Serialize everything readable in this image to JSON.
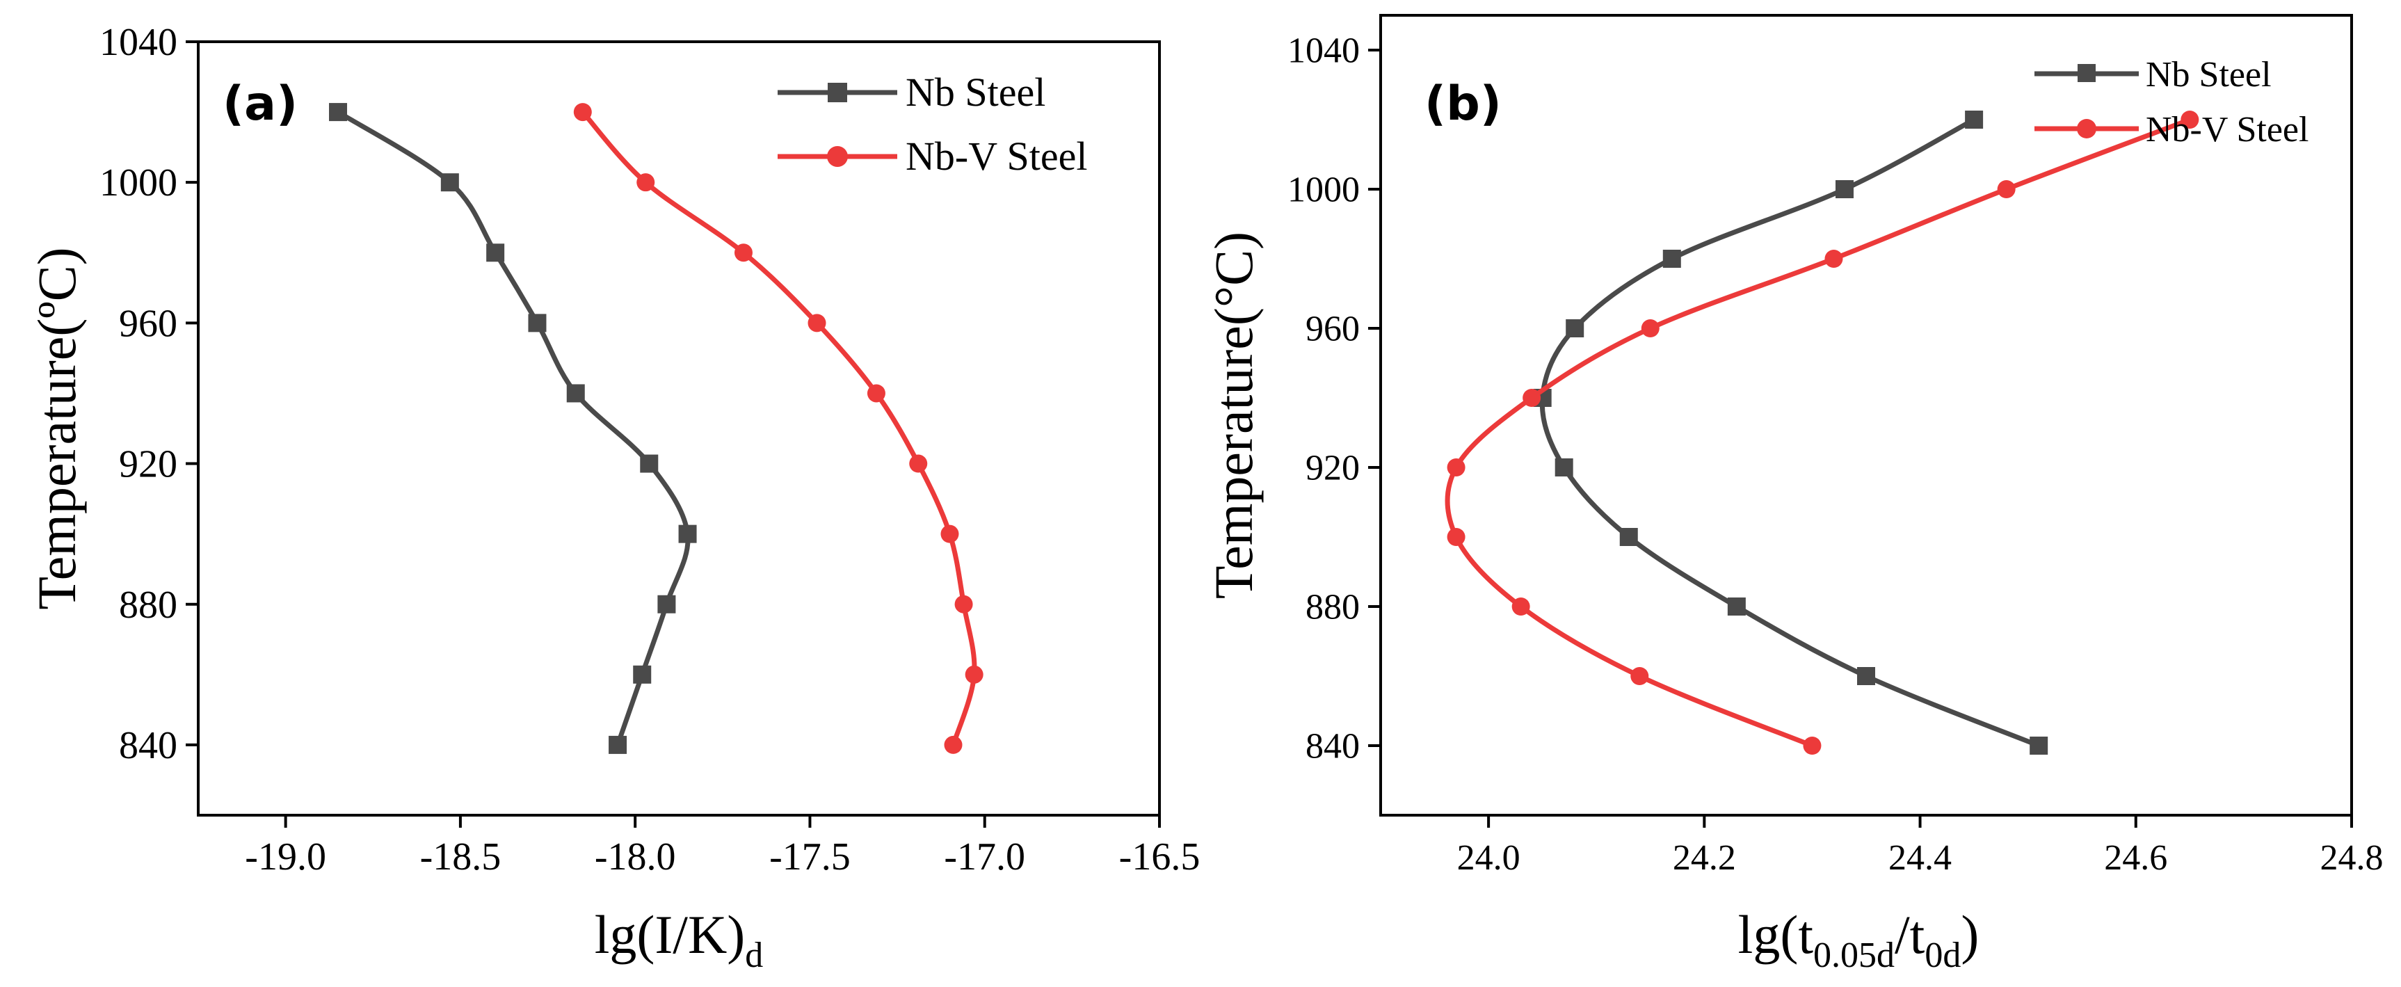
{
  "chart_data": [
    {
      "type": "line",
      "panel_label": "(a)",
      "xlabel": "lg(I/K)",
      "xlabel_sub": "d",
      "ylabel": "Temperature(ºC)",
      "xlim": [
        -19.25,
        -16.5
      ],
      "ylim": [
        820,
        1040
      ],
      "xticks": [
        -19.0,
        -18.5,
        -18.0,
        -17.5,
        -17.0,
        -16.5
      ],
      "xtick_labels": [
        "-19.0",
        "-18.5",
        "-18.0",
        "-17.5",
        "-17.0",
        "-16.5"
      ],
      "yticks": [
        840,
        880,
        920,
        960,
        1000,
        1040
      ],
      "ytick_labels": [
        "840",
        "880",
        "920",
        "960",
        "1000",
        "1040"
      ],
      "legend_position": "top-right",
      "series": [
        {
          "name": "Nb Steel",
          "color": "#4a4a4a",
          "marker": "square",
          "x": [
            -18.85,
            -18.53,
            -18.4,
            -18.28,
            -18.17,
            -17.96,
            -17.85,
            -17.91,
            -17.98,
            -18.05
          ],
          "y": [
            1020,
            1000,
            980,
            960,
            940,
            920,
            900,
            880,
            860,
            840
          ]
        },
        {
          "name": "Nb-V Steel",
          "color": "#ec3a3a",
          "marker": "circle",
          "x": [
            -18.15,
            -17.97,
            -17.69,
            -17.48,
            -17.31,
            -17.19,
            -17.1,
            -17.06,
            -17.03,
            -17.09
          ],
          "y": [
            1020,
            1000,
            980,
            960,
            940,
            920,
            900,
            880,
            860,
            840
          ]
        }
      ]
    },
    {
      "type": "line",
      "panel_label": "(b)",
      "xlabel": "lg(t",
      "xlabel_sub1": "0.05d",
      "xlabel_mid": "/t",
      "xlabel_sub2": "0d",
      "xlabel_end": ")",
      "ylabel": "Temperature(°C)",
      "xlim": [
        23.9,
        24.8
      ],
      "ylim": [
        820,
        1050
      ],
      "xticks": [
        24.0,
        24.2,
        24.4,
        24.6,
        24.8
      ],
      "xtick_labels": [
        "24.0",
        "24.2",
        "24.4",
        "24.6",
        "24.8"
      ],
      "yticks": [
        840,
        880,
        920,
        960,
        1000,
        1040
      ],
      "ytick_labels": [
        "840",
        "880",
        "920",
        "960",
        "1000",
        "1040"
      ],
      "legend_position": "top-right",
      "series": [
        {
          "name": "Nb Steel",
          "color": "#4a4a4a",
          "marker": "square",
          "x": [
            24.45,
            24.33,
            24.17,
            24.08,
            24.05,
            24.07,
            24.13,
            24.23,
            24.35,
            24.51
          ],
          "y": [
            1020,
            1000,
            980,
            960,
            940,
            920,
            900,
            880,
            860,
            840
          ]
        },
        {
          "name": "Nb-V Steel",
          "color": "#ec3a3a",
          "marker": "circle",
          "x": [
            24.65,
            24.48,
            24.32,
            24.15,
            24.04,
            23.97,
            23.97,
            24.03,
            24.14,
            24.3
          ],
          "y": [
            1020,
            1000,
            980,
            960,
            940,
            920,
            900,
            880,
            860,
            840
          ]
        }
      ]
    }
  ]
}
